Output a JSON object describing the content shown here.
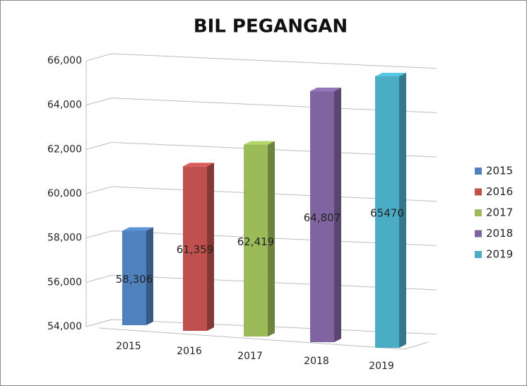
{
  "chart_data": {
    "type": "bar3d",
    "title": "BIL PEGANGAN",
    "categories": [
      "2015",
      "2016",
      "2017",
      "2018",
      "2019"
    ],
    "values": [
      58306,
      61359,
      62419,
      64807,
      65470
    ],
    "value_labels": [
      "58,306",
      "61,359",
      "62,419",
      "64,807",
      "65470"
    ],
    "colors": [
      "#4f81bd",
      "#c0504d",
      "#9bbb59",
      "#8064a2",
      "#4bacc6"
    ],
    "ylim": [
      54000,
      66000
    ],
    "yticks": [
      {
        "value": 54000,
        "label": "54,000"
      },
      {
        "value": 56000,
        "label": "56,000"
      },
      {
        "value": 58000,
        "label": "58,000"
      },
      {
        "value": 60000,
        "label": "60,000"
      },
      {
        "value": 62000,
        "label": "62,000"
      },
      {
        "value": 64000,
        "label": "64,000"
      },
      {
        "value": 66000,
        "label": "66,000"
      }
    ],
    "grid": true,
    "legend": "right"
  }
}
